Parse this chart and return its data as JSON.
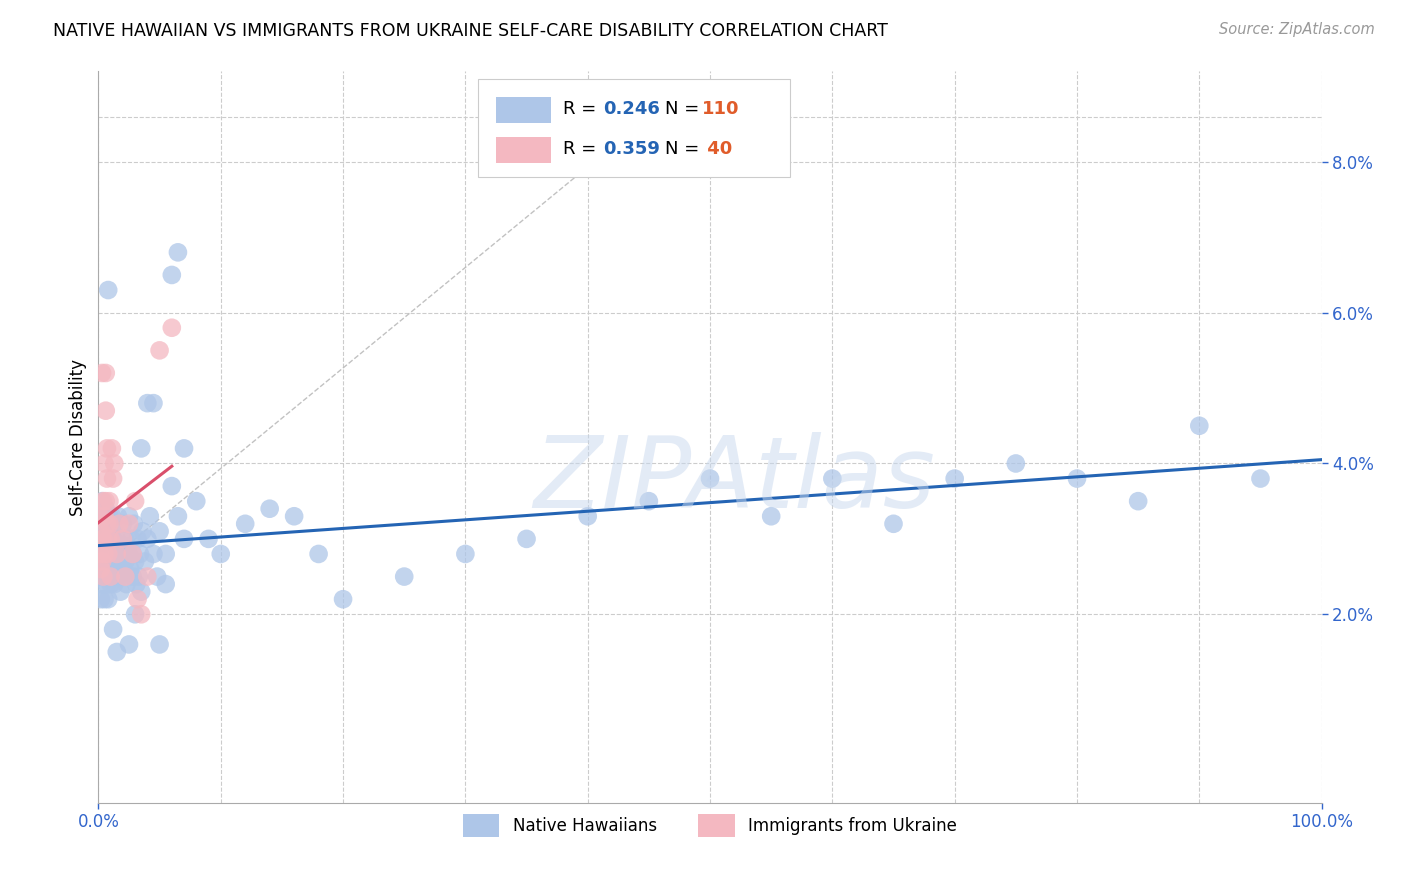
{
  "title": "NATIVE HAWAIIAN VS IMMIGRANTS FROM UKRAINE SELF-CARE DISABILITY CORRELATION CHART",
  "source": "Source: ZipAtlas.com",
  "ylabel": "Self-Care Disability",
  "watermark": "ZIPAtlas",
  "xlim": [
    0.0,
    1.0
  ],
  "ylim": [
    -0.005,
    0.092
  ],
  "ytick_labels": [
    "2.0%",
    "4.0%",
    "6.0%",
    "8.0%"
  ],
  "ytick_vals": [
    0.02,
    0.04,
    0.06,
    0.08
  ],
  "blue_R": 0.246,
  "blue_N": 110,
  "pink_R": 0.359,
  "pink_N": 40,
  "blue_color": "#aec6e8",
  "pink_color": "#f4b8c1",
  "blue_line_color": "#2464b4",
  "pink_line_color": "#d94f6b",
  "legend_R_color": "#2464b4",
  "legend_N_color": "#e05c2a",
  "grid_color": "#cccccc",
  "background_color": "#ffffff",
  "blue_scatter_x": [
    0.001,
    0.001,
    0.002,
    0.002,
    0.002,
    0.003,
    0.003,
    0.003,
    0.004,
    0.004,
    0.004,
    0.005,
    0.005,
    0.005,
    0.006,
    0.006,
    0.006,
    0.007,
    0.007,
    0.007,
    0.008,
    0.008,
    0.008,
    0.009,
    0.009,
    0.01,
    0.01,
    0.01,
    0.011,
    0.011,
    0.012,
    0.012,
    0.013,
    0.013,
    0.014,
    0.015,
    0.015,
    0.016,
    0.016,
    0.017,
    0.018,
    0.018,
    0.019,
    0.02,
    0.02,
    0.021,
    0.022,
    0.022,
    0.023,
    0.024,
    0.025,
    0.025,
    0.026,
    0.027,
    0.028,
    0.028,
    0.029,
    0.03,
    0.031,
    0.032,
    0.033,
    0.034,
    0.035,
    0.036,
    0.038,
    0.04,
    0.042,
    0.045,
    0.048,
    0.05,
    0.055,
    0.06,
    0.065,
    0.07,
    0.08,
    0.09,
    0.1,
    0.12,
    0.14,
    0.16,
    0.18,
    0.2,
    0.25,
    0.3,
    0.35,
    0.4,
    0.45,
    0.5,
    0.55,
    0.6,
    0.65,
    0.7,
    0.75,
    0.8,
    0.85,
    0.9,
    0.95,
    0.065,
    0.03,
    0.06,
    0.035,
    0.04,
    0.05,
    0.055,
    0.07,
    0.045,
    0.025,
    0.015,
    0.012,
    0.008
  ],
  "blue_scatter_y": [
    0.027,
    0.032,
    0.025,
    0.03,
    0.022,
    0.028,
    0.035,
    0.024,
    0.03,
    0.026,
    0.033,
    0.027,
    0.022,
    0.031,
    0.025,
    0.029,
    0.034,
    0.024,
    0.028,
    0.032,
    0.026,
    0.03,
    0.022,
    0.027,
    0.033,
    0.025,
    0.029,
    0.024,
    0.028,
    0.033,
    0.026,
    0.03,
    0.024,
    0.028,
    0.032,
    0.025,
    0.03,
    0.027,
    0.033,
    0.025,
    0.029,
    0.023,
    0.028,
    0.026,
    0.032,
    0.025,
    0.03,
    0.027,
    0.024,
    0.029,
    0.028,
    0.033,
    0.026,
    0.03,
    0.025,
    0.028,
    0.032,
    0.027,
    0.024,
    0.03,
    0.025,
    0.028,
    0.023,
    0.031,
    0.027,
    0.03,
    0.033,
    0.028,
    0.025,
    0.031,
    0.028,
    0.037,
    0.033,
    0.03,
    0.035,
    0.03,
    0.028,
    0.032,
    0.034,
    0.033,
    0.028,
    0.022,
    0.025,
    0.028,
    0.03,
    0.033,
    0.035,
    0.038,
    0.033,
    0.038,
    0.032,
    0.038,
    0.04,
    0.038,
    0.035,
    0.045,
    0.038,
    0.068,
    0.02,
    0.065,
    0.042,
    0.048,
    0.016,
    0.024,
    0.042,
    0.048,
    0.016,
    0.015,
    0.018,
    0.063
  ],
  "pink_scatter_x": [
    0.001,
    0.001,
    0.002,
    0.002,
    0.003,
    0.003,
    0.003,
    0.004,
    0.004,
    0.004,
    0.005,
    0.005,
    0.005,
    0.006,
    0.006,
    0.006,
    0.007,
    0.007,
    0.007,
    0.008,
    0.008,
    0.009,
    0.009,
    0.01,
    0.01,
    0.011,
    0.012,
    0.013,
    0.015,
    0.017,
    0.02,
    0.022,
    0.025,
    0.028,
    0.03,
    0.032,
    0.035,
    0.04,
    0.05,
    0.06
  ],
  "pink_scatter_y": [
    0.028,
    0.033,
    0.026,
    0.031,
    0.052,
    0.03,
    0.027,
    0.035,
    0.03,
    0.025,
    0.04,
    0.033,
    0.028,
    0.052,
    0.047,
    0.035,
    0.042,
    0.038,
    0.032,
    0.03,
    0.028,
    0.035,
    0.032,
    0.03,
    0.025,
    0.042,
    0.038,
    0.04,
    0.028,
    0.032,
    0.03,
    0.025,
    0.032,
    0.028,
    0.035,
    0.022,
    0.02,
    0.025,
    0.055,
    0.058
  ]
}
